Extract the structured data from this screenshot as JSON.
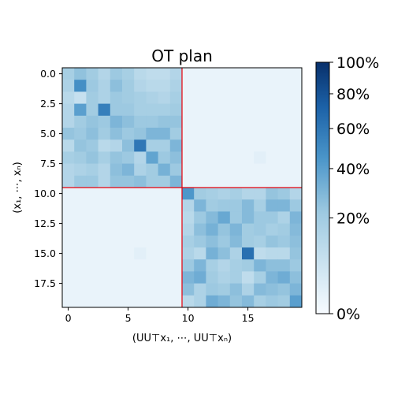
{
  "chart_data": {
    "type": "heatmap",
    "title": "OT plan",
    "xlabel": "(UU⊤x₁, ⋯, UU⊤xₙ)",
    "ylabel": "(x₁, ⋯, xₙ)",
    "x_ticks": [
      "0",
      "5",
      "10",
      "15"
    ],
    "y_ticks": [
      "0.0",
      "2.5",
      "5.0",
      "7.5",
      "10.0",
      "12.5",
      "15.0",
      "17.5"
    ],
    "colorbar": {
      "ticks": [
        "0%",
        "20%",
        "40%",
        "60%",
        "80%",
        "100%"
      ],
      "scale": "power",
      "range": [
        0,
        100
      ]
    },
    "rows": 20,
    "cols": 20,
    "block_lines": [
      9.5
    ],
    "block_line_color": "#e8000b",
    "values": [
      [
        18,
        25,
        20,
        14,
        22,
        18,
        12,
        10,
        10,
        14,
        1,
        1,
        1,
        1,
        1,
        1,
        1,
        1,
        1,
        1
      ],
      [
        16,
        48,
        22,
        16,
        26,
        20,
        14,
        12,
        12,
        16,
        1,
        1,
        1,
        1,
        1,
        1,
        1,
        1,
        1,
        1
      ],
      [
        12,
        8,
        20,
        16,
        22,
        20,
        18,
        16,
        14,
        18,
        1,
        1,
        1,
        1,
        1,
        1,
        1,
        1,
        1,
        1
      ],
      [
        14,
        40,
        20,
        56,
        22,
        22,
        18,
        18,
        18,
        20,
        1,
        1,
        1,
        1,
        1,
        1,
        1,
        1,
        1,
        1
      ],
      [
        14,
        20,
        24,
        22,
        30,
        26,
        22,
        22,
        24,
        24,
        1,
        1,
        1,
        1,
        1,
        1,
        1,
        1,
        1,
        1
      ],
      [
        24,
        22,
        26,
        20,
        26,
        22,
        24,
        30,
        30,
        20,
        1,
        1,
        1,
        1,
        1,
        1,
        1,
        1,
        1,
        1
      ],
      [
        12,
        24,
        22,
        12,
        14,
        26,
        60,
        18,
        18,
        30,
        1,
        1,
        1,
        1,
        1,
        1,
        1,
        1,
        1,
        1
      ],
      [
        18,
        20,
        24,
        18,
        24,
        22,
        14,
        38,
        22,
        26,
        1,
        1,
        1,
        1,
        1,
        1,
        2,
        1,
        1,
        1
      ],
      [
        14,
        16,
        18,
        14,
        26,
        30,
        16,
        20,
        32,
        22,
        1,
        1,
        1,
        1,
        1,
        1,
        1,
        1,
        1,
        1
      ],
      [
        14,
        22,
        22,
        14,
        24,
        24,
        26,
        20,
        20,
        30,
        1,
        1,
        1,
        1,
        1,
        1,
        1,
        1,
        1,
        1
      ],
      [
        1,
        1,
        1,
        1,
        1,
        1,
        1,
        1,
        1,
        1,
        44,
        20,
        18,
        16,
        18,
        14,
        14,
        24,
        22,
        14
      ],
      [
        1,
        1,
        1,
        1,
        1,
        1,
        1,
        1,
        1,
        1,
        14,
        30,
        20,
        22,
        22,
        28,
        18,
        30,
        30,
        22
      ],
      [
        1,
        1,
        1,
        1,
        1,
        1,
        1,
        1,
        1,
        1,
        12,
        22,
        28,
        36,
        22,
        28,
        22,
        22,
        16,
        30
      ],
      [
        1,
        1,
        1,
        1,
        1,
        1,
        1,
        1,
        1,
        1,
        14,
        26,
        32,
        24,
        30,
        20,
        22,
        18,
        20,
        28
      ],
      [
        1,
        1,
        1,
        1,
        1,
        1,
        1,
        1,
        1,
        1,
        18,
        22,
        26,
        22,
        28,
        20,
        18,
        24,
        22,
        26
      ],
      [
        1,
        1,
        1,
        1,
        1,
        1,
        2,
        1,
        1,
        1,
        16,
        12,
        32,
        26,
        16,
        64,
        10,
        12,
        12,
        24
      ],
      [
        1,
        1,
        1,
        1,
        1,
        1,
        1,
        1,
        1,
        1,
        22,
        30,
        18,
        14,
        18,
        20,
        30,
        26,
        26,
        22
      ],
      [
        1,
        1,
        1,
        1,
        1,
        1,
        1,
        1,
        1,
        1,
        30,
        34,
        20,
        16,
        18,
        10,
        18,
        30,
        34,
        26
      ],
      [
        1,
        1,
        1,
        1,
        1,
        1,
        1,
        1,
        1,
        1,
        26,
        16,
        22,
        20,
        26,
        16,
        28,
        26,
        24,
        30
      ],
      [
        1,
        1,
        1,
        1,
        1,
        1,
        1,
        1,
        1,
        1,
        12,
        16,
        34,
        30,
        24,
        28,
        18,
        22,
        20,
        40
      ]
    ]
  }
}
